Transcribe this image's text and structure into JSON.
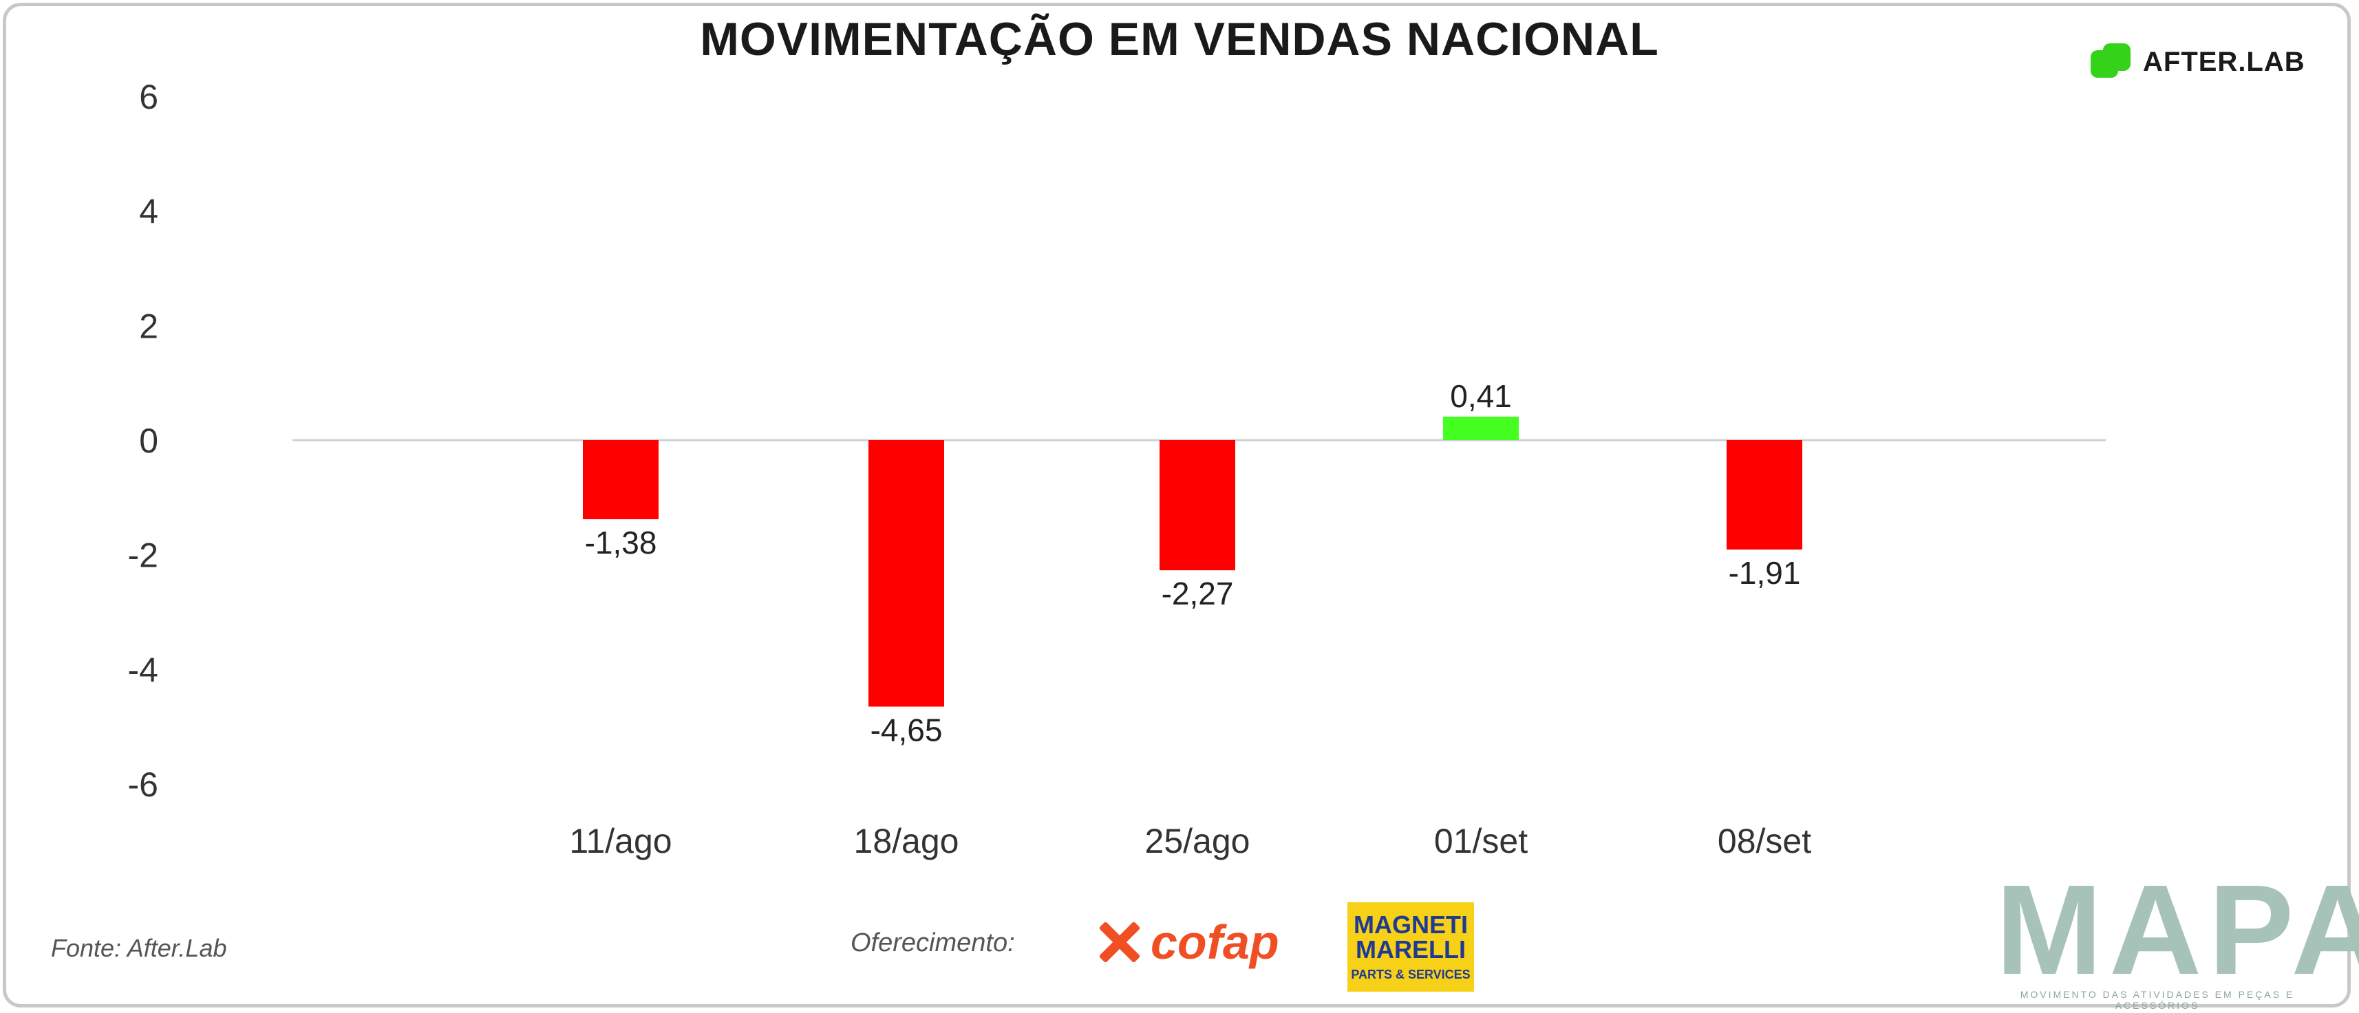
{
  "title": "MOVIMENTAÇÃO EM VENDAS NACIONAL",
  "brand": {
    "afterlab_text": "AFTER.LAB",
    "mapa_text": "MAPA",
    "mapa_subtitle": "MOVIMENTO DAS ATIVIDADES EM PEÇAS E ACESSÓRIOS"
  },
  "footer": {
    "source": "Fonte: After.Lab",
    "sponsor_label": "Oferecimento:",
    "sponsor_cofap": "cofap",
    "sponsor_magneti": "MAGNETI MARELLI",
    "sponsor_magneti_sub": "PARTS & SERVICES"
  },
  "colors": {
    "negative": "#ff0000",
    "positive": "#44ff1f",
    "baseline": "#c9d3d6"
  },
  "chart_data": {
    "type": "bar",
    "title": "MOVIMENTAÇÃO EM VENDAS NACIONAL",
    "xlabel": "",
    "ylabel": "",
    "categories": [
      "11/ago",
      "18/ago",
      "25/ago",
      "01/set",
      "08/set"
    ],
    "values": [
      -1.38,
      -4.65,
      -2.27,
      0.41,
      -1.91
    ],
    "value_labels": [
      "-1,38",
      "-4,65",
      "-2,27",
      "0,41",
      "-1,91"
    ],
    "ylim": [
      -6,
      6
    ],
    "yticks": [
      6,
      4,
      2,
      0,
      -2,
      -4,
      -6
    ],
    "grid": false,
    "legend": "none"
  }
}
